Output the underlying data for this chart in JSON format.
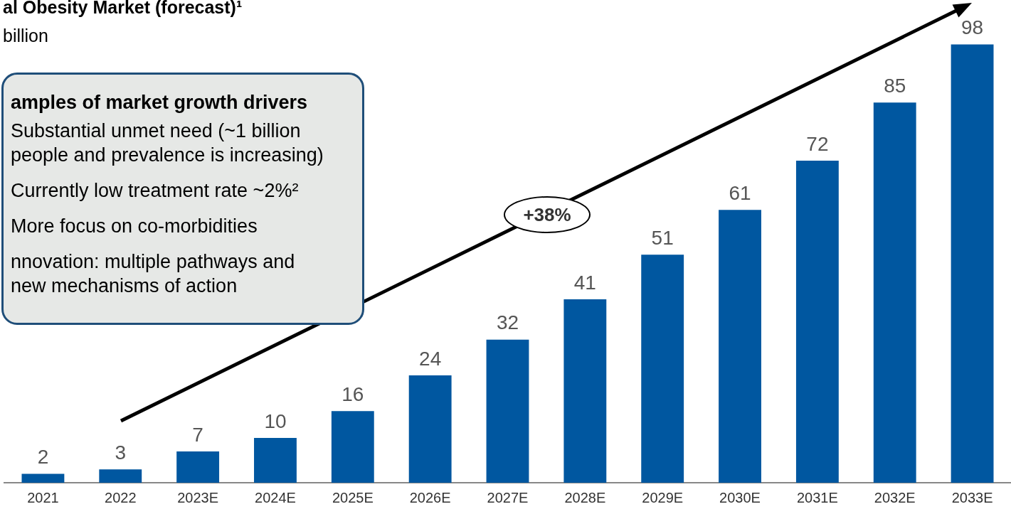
{
  "chart_data": {
    "type": "bar",
    "title": "al Obesity Market (forecast)¹",
    "subtitle": "billion",
    "categories": [
      "2021",
      "2022",
      "2023E",
      "2024E",
      "2025E",
      "2026E",
      "2027E",
      "2028E",
      "2029E",
      "2030E",
      "2031E",
      "2032E",
      "2033E"
    ],
    "values": [
      2,
      3,
      7,
      10,
      16,
      24,
      32,
      41,
      51,
      61,
      72,
      85,
      98
    ],
    "color": "#0057a0",
    "tick_labels": "x",
    "grid": false,
    "legend": false,
    "data_labels": true,
    "annotations": [
      "+38%",
      "amples of market growth drivers",
      "Substantial unmet need (~1 billion",
      "people and prevalence is increasing)",
      "Currently low treatment rate ~2%²",
      "More focus on co-morbidities",
      "nnovation: multiple pathways and",
      "new mechanisms of action"
    ]
  }
}
